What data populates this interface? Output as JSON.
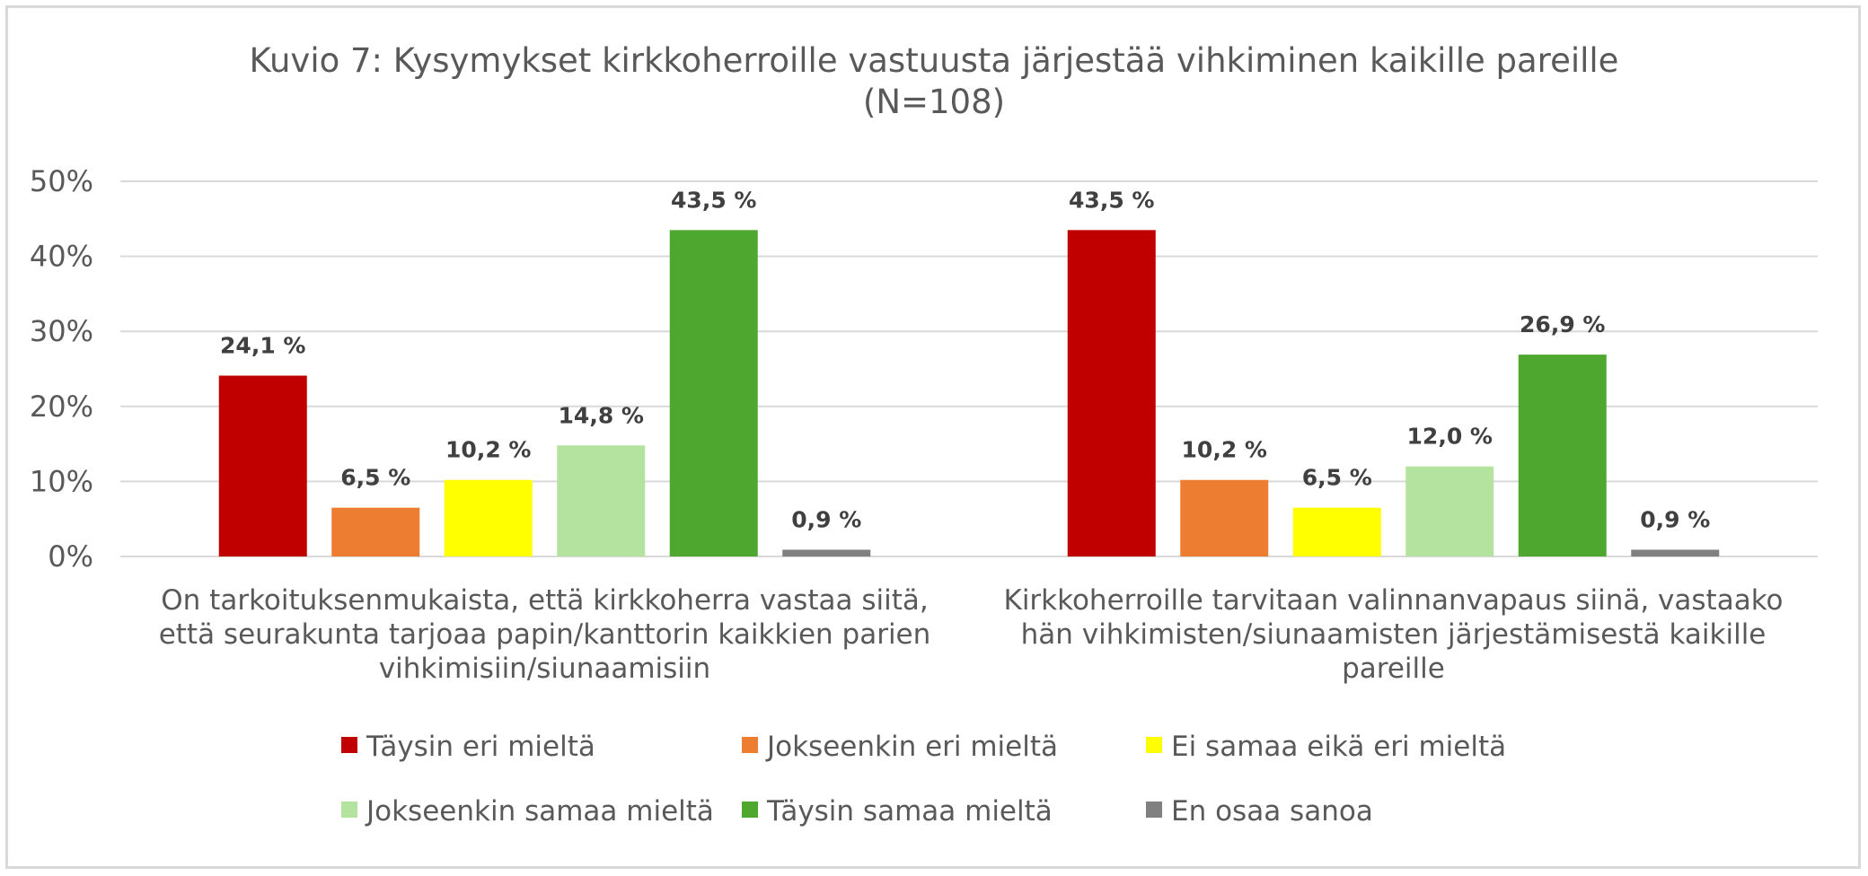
{
  "chart_data": {
    "type": "bar",
    "title_lines": [
      "Kuvio 7: Kysymykset kirkkoherroille vastuusta järjestää vihkiminen kaikille pareille",
      "(N=108)"
    ],
    "categories": [
      "On tarkoituksenmukaista, että kirkkoherra vastaa siitä, että seurakunta tarjoaa papin/kanttorin kaikkien parien vihkimisiin/siunaamisiin",
      "Kirkkoherroille tarvitaan valinnanvapaus siinä, vastaako hän  vihkimisten/siunaamisten järjestämisestä kaikille pareille"
    ],
    "category_label_lines": [
      [
        "On tarkoituksenmukaista, että kirkkoherra vastaa siitä,",
        "että seurakunta tarjoaa papin/kanttorin kaikkien parien",
        "vihkimisiin/siunaamisiin"
      ],
      [
        "Kirkkoherroille tarvitaan valinnanvapaus siinä, vastaako",
        "hän  vihkimisten/siunaamisten järjestämisestä kaikille",
        "pareille"
      ]
    ],
    "series": [
      {
        "name": "Täysin eri mieltä",
        "color": "#c00000",
        "values": [
          24.1,
          43.5
        ],
        "labels": [
          "24,1 %",
          "43,5 %"
        ]
      },
      {
        "name": "Jokseenkin eri mieltä",
        "color": "#ed7d31",
        "values": [
          6.5,
          10.2
        ],
        "labels": [
          "6,5 %",
          "10,2 %"
        ]
      },
      {
        "name": "Ei samaa eikä eri mieltä",
        "color": "#ffff00",
        "values": [
          10.2,
          6.5
        ],
        "labels": [
          "10,2 %",
          "6,5 %"
        ]
      },
      {
        "name": "Jokseenkin samaa mieltä",
        "color": "#b4e3a0",
        "values": [
          14.8,
          12.0
        ],
        "labels": [
          "14,8 %",
          "12,0 %"
        ]
      },
      {
        "name": "Täysin samaa mieltä",
        "color": "#4ea72e",
        "values": [
          43.5,
          26.9
        ],
        "labels": [
          "43,5 %",
          "26,9 %"
        ]
      },
      {
        "name": "En osaa sanoa",
        "color": "#808080",
        "values": [
          0.9,
          0.9
        ],
        "labels": [
          "0,9 %",
          "0,9 %"
        ]
      }
    ],
    "y_ticks": [
      "0%",
      "10%",
      "20%",
      "30%",
      "40%",
      "50%"
    ],
    "ylim": [
      0,
      50
    ],
    "grid": true,
    "legend_position": "bottom"
  }
}
